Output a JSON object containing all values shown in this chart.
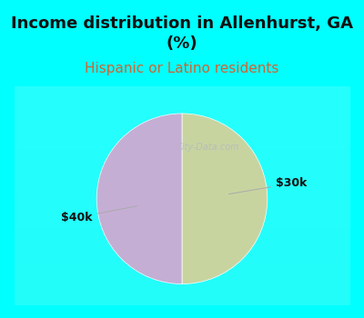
{
  "title": "Income distribution in Allenhurst, GA\n(%)",
  "subtitle": "Hispanic or Latino residents",
  "slices": [
    50.0,
    50.0
  ],
  "labels": [
    "$40k",
    "$30k"
  ],
  "colors": [
    "#c8d4a0",
    "#c5aed4"
  ],
  "bg_color_cyan": "#00ffff",
  "bg_color_chart": "#ffffff",
  "title_fontsize": 13,
  "subtitle_fontsize": 11,
  "label_fontsize": 9,
  "startangle": 90,
  "subtitle_color": "#cc6633"
}
